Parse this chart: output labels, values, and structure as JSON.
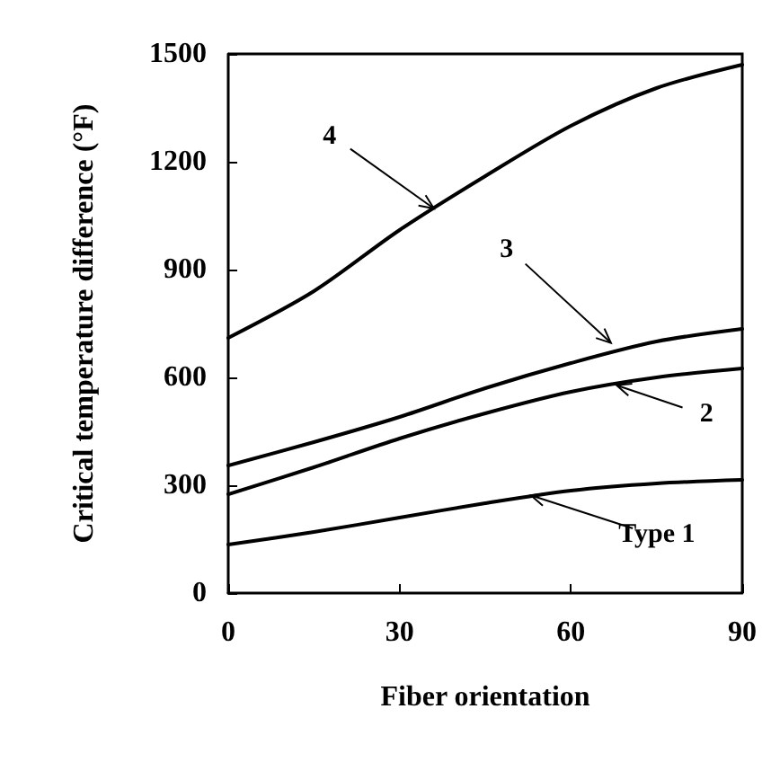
{
  "chart_data": {
    "type": "line",
    "xlabel": "Fiber orientation",
    "ylabel": "Critical temperature difference (°F)",
    "x": [
      0,
      15,
      30,
      45,
      60,
      75,
      90
    ],
    "series": [
      {
        "color": "#000000",
        "values": [
          135,
          170,
          210,
          250,
          285,
          305,
          315
        ]
      },
      {
        "color": "#000000",
        "values": [
          275,
          350,
          430,
          500,
          560,
          600,
          625
        ]
      },
      {
        "color": "#000000",
        "values": [
          355,
          420,
          490,
          570,
          640,
          700,
          735
        ]
      },
      {
        "color": "#000000",
        "values": [
          710,
          840,
          1010,
          1160,
          1300,
          1405,
          1470
        ]
      }
    ],
    "annotations": [
      {
        "text": "Type 1",
        "x": 53,
        "y": 272
      },
      {
        "text": "2",
        "x": 68,
        "y": 578
      },
      {
        "text": "3",
        "x": 67,
        "y": 696
      },
      {
        "text": "4",
        "x": 36,
        "y": 1070
      }
    ],
    "xlim": [
      0,
      90
    ],
    "xticks": [
      0,
      30,
      60,
      90
    ],
    "ylim": [
      0,
      1500
    ],
    "yticks": [
      0,
      300,
      600,
      900,
      1200,
      1500
    ],
    "grid": false,
    "marker": "none",
    "line_style": "solid"
  }
}
